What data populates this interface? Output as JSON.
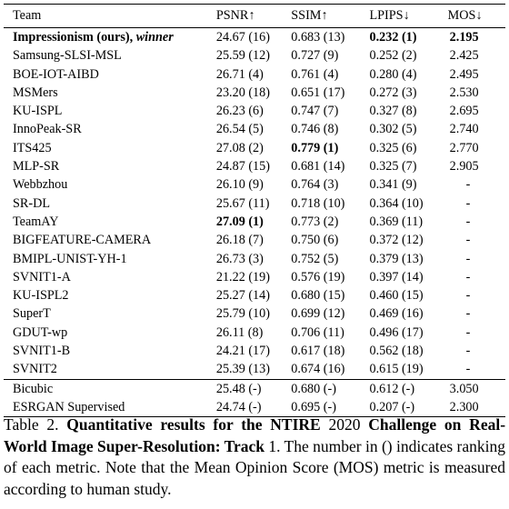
{
  "table": {
    "headers": [
      "Team",
      "PSNR↑",
      "SSIM↑",
      "LPIPS↓",
      "MOS↓"
    ],
    "first_row": {
      "team_bold": "Impressionism (ours), ",
      "team_italic": "winner",
      "psnr": "24.67 (16)",
      "ssim": "0.683 (13)",
      "lpips": "0.232 (1)",
      "mos": "2.195"
    },
    "rows": [
      {
        "team": "Samsung-SLSI-MSL",
        "psnr": "25.59 (12)",
        "ssim": "0.727 (9)",
        "lpips": "0.252 (2)",
        "mos": "2.425"
      },
      {
        "team": "BOE-IOT-AIBD",
        "psnr": "26.71 (4)",
        "ssim": "0.761 (4)",
        "lpips": "0.280 (4)",
        "mos": "2.495"
      },
      {
        "team": "MSMers",
        "psnr": "23.20 (18)",
        "ssim": "0.651 (17)",
        "lpips": "0.272 (3)",
        "mos": "2.530"
      },
      {
        "team": "KU-ISPL",
        "psnr": "26.23 (6)",
        "ssim": "0.747 (7)",
        "lpips": "0.327 (8)",
        "mos": "2.695"
      },
      {
        "team": "InnoPeak-SR",
        "psnr": "26.54 (5)",
        "ssim": "0.746 (8)",
        "lpips": "0.302 (5)",
        "mos": "2.740"
      },
      {
        "team": "ITS425",
        "psnr": "27.08 (2)",
        "ssim": "0.779 (1)",
        "lpips": "0.325 (6)",
        "mos": "2.770"
      },
      {
        "team": "MLP-SR",
        "psnr": "24.87 (15)",
        "ssim": "0.681 (14)",
        "lpips": "0.325 (7)",
        "mos": "2.905"
      },
      {
        "team": "Webbzhou",
        "psnr": "26.10 (9)",
        "ssim": "0.764 (3)",
        "lpips": "0.341 (9)",
        "mos": "-"
      },
      {
        "team": "SR-DL",
        "psnr": "25.67 (11)",
        "ssim": "0.718 (10)",
        "lpips": "0.364 (10)",
        "mos": "-"
      },
      {
        "team": "TeamAY",
        "psnr": "27.09 (1)",
        "ssim": "0.773 (2)",
        "lpips": "0.369 (11)",
        "mos": "-"
      },
      {
        "team": "BIGFEATURE-CAMERA",
        "psnr": "26.18 (7)",
        "ssim": "0.750 (6)",
        "lpips": "0.372 (12)",
        "mos": "-"
      },
      {
        "team": "BMIPL-UNIST-YH-1",
        "psnr": "26.73 (3)",
        "ssim": "0.752 (5)",
        "lpips": "0.379 (13)",
        "mos": "-"
      },
      {
        "team": "SVNIT1-A",
        "psnr": "21.22 (19)",
        "ssim": "0.576 (19)",
        "lpips": "0.397 (14)",
        "mos": "-"
      },
      {
        "team": "KU-ISPL2",
        "psnr": "25.27 (14)",
        "ssim": "0.680 (15)",
        "lpips": "0.460 (15)",
        "mos": "-"
      },
      {
        "team": "SuperT",
        "psnr": "25.79 (10)",
        "ssim": "0.699 (12)",
        "lpips": "0.469 (16)",
        "mos": "-"
      },
      {
        "team": "GDUT-wp",
        "psnr": "26.11 (8)",
        "ssim": "0.706 (11)",
        "lpips": "0.496 (17)",
        "mos": "-"
      },
      {
        "team": "SVNIT1-B",
        "psnr": "24.21 (17)",
        "ssim": "0.617 (18)",
        "lpips": "0.562 (18)",
        "mos": "-"
      },
      {
        "team": "SVNIT2",
        "psnr": "25.39 (13)",
        "ssim": "0.674 (16)",
        "lpips": "0.615 (19)",
        "mos": "-"
      }
    ],
    "baselines": [
      {
        "team": "Bicubic",
        "psnr": "25.48 (-)",
        "ssim": "0.680 (-)",
        "lpips": "0.612 (-)",
        "mos": "3.050"
      },
      {
        "team": "ESRGAN Supervised",
        "psnr": "24.74 (-)",
        "ssim": "0.695 (-)",
        "lpips": "0.207 (-)",
        "mos": "2.300"
      }
    ]
  },
  "caption": {
    "label": "Table 2.",
    "part1": "Quantitative results for the NTIRE",
    "year": "2020",
    "part2": "Challenge on Real-World Image Super-Resolution: Track",
    "track": "1",
    "rest": ". The number in () indicates ranking of each metric. Note that the Mean Opinion Score (MOS) metric is measured according to human study."
  }
}
